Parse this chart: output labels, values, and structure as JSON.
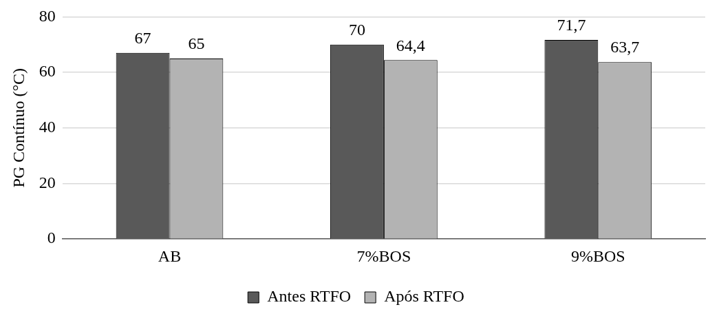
{
  "chart_data": {
    "type": "bar",
    "ylabel": "PG Contínuo (°C)",
    "categories": [
      "AB",
      "7%BOS",
      "9%BOS"
    ],
    "series": [
      {
        "name": "Antes RTFO",
        "color": "#595959",
        "values": [
          67,
          70,
          71.7
        ],
        "value_labels": [
          "67",
          "70",
          "71,7"
        ]
      },
      {
        "name": "Após RTFO",
        "color": "#b3b3b3",
        "values": [
          65,
          64.4,
          63.7
        ],
        "value_labels": [
          "65",
          "64,4",
          "63,7"
        ]
      }
    ],
    "ylim": [
      0,
      80
    ],
    "yticks": [
      0,
      20,
      40,
      60,
      80
    ],
    "grid": "y",
    "legend": "bottom"
  }
}
